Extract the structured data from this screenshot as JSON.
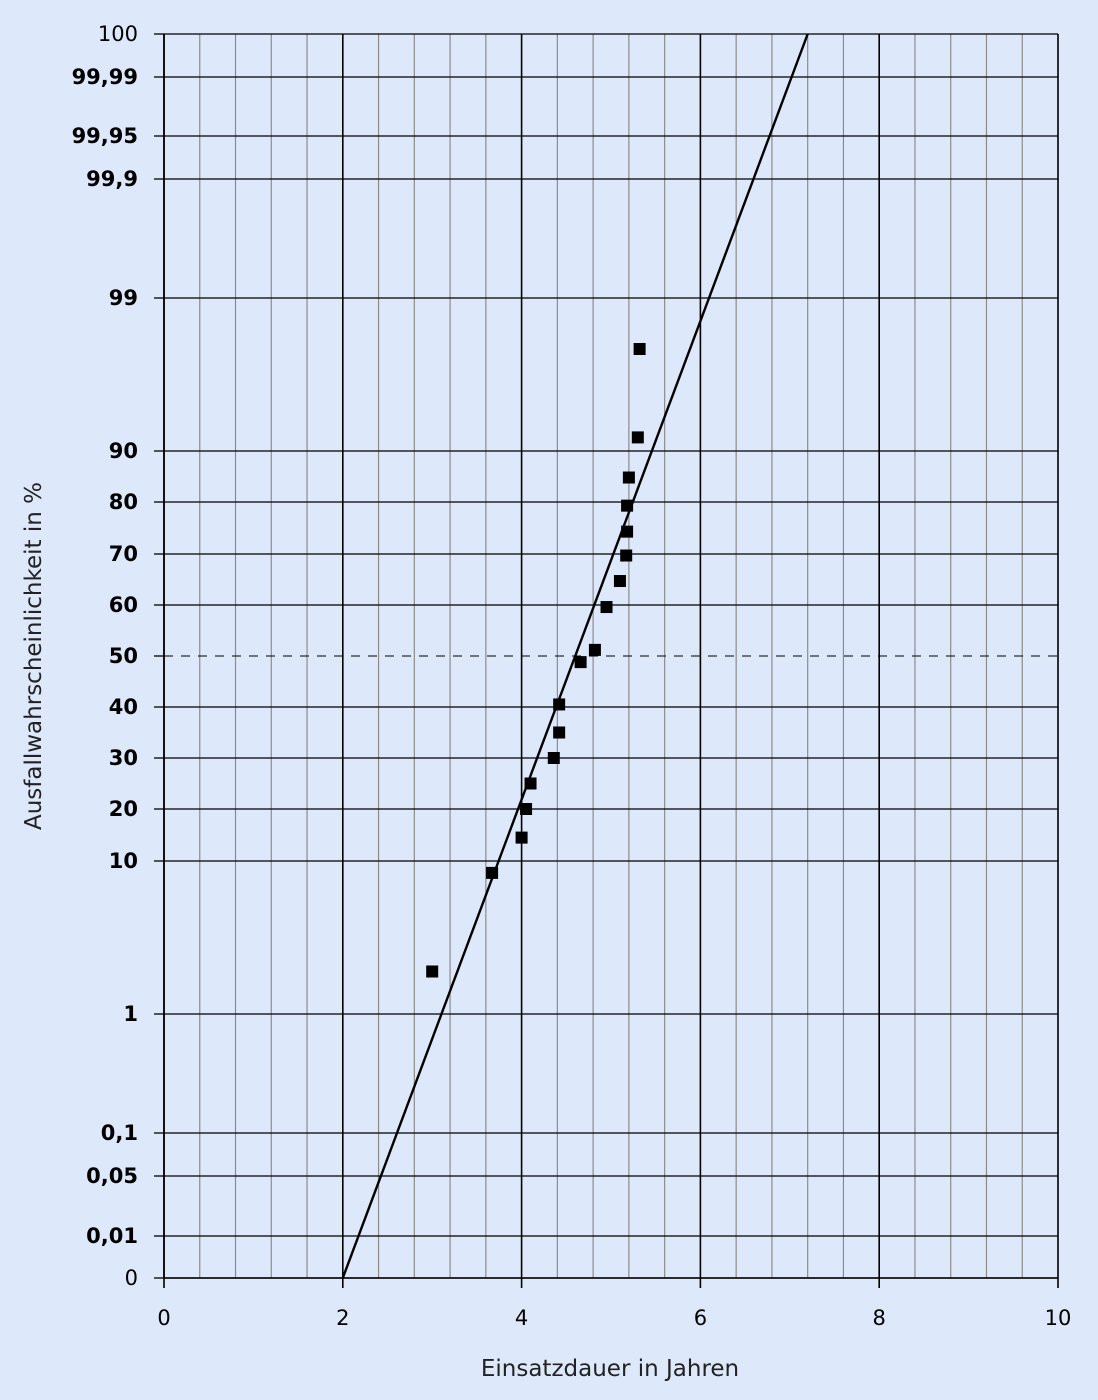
{
  "chart_data": {
    "type": "scatter",
    "title": "",
    "xlabel": "Einsatzdauer in Jahren",
    "ylabel": "Ausfallwahrscheinlichkeit in %",
    "xlim": [
      0,
      10
    ],
    "x_ticks": [
      "0",
      "2",
      "4",
      "6",
      "8",
      "10"
    ],
    "y_ticks": [
      {
        "label": "0",
        "value": 0,
        "bold": false
      },
      {
        "label": "0,01",
        "value": 0.01,
        "bold": true
      },
      {
        "label": "0,05",
        "value": 0.05,
        "bold": true
      },
      {
        "label": "0,1",
        "value": 0.1,
        "bold": true
      },
      {
        "label": "1",
        "value": 1,
        "bold": true
      },
      {
        "label": "10",
        "value": 10,
        "bold": true
      },
      {
        "label": "20",
        "value": 20,
        "bold": true
      },
      {
        "label": "30",
        "value": 30,
        "bold": true
      },
      {
        "label": "40",
        "value": 40,
        "bold": true
      },
      {
        "label": "50",
        "value": 50,
        "bold": true
      },
      {
        "label": "60",
        "value": 60,
        "bold": true
      },
      {
        "label": "70",
        "value": 70,
        "bold": true
      },
      {
        "label": "80",
        "value": 80,
        "bold": true
      },
      {
        "label": "90",
        "value": 90,
        "bold": true
      },
      {
        "label": "99",
        "value": 99,
        "bold": true
      },
      {
        "label": "99,9",
        "value": 99.9,
        "bold": true
      },
      {
        "label": "99,95",
        "value": 99.95,
        "bold": true
      },
      {
        "label": "99,99",
        "value": 99.99,
        "bold": true
      },
      {
        "label": "100",
        "value": 100,
        "bold": false
      }
    ],
    "y_scale": "probability (Weibull)",
    "grid": true,
    "reference_line": {
      "y": 50,
      "style": "dashed"
    },
    "series": [
      {
        "points": [
          {
            "x": 3.0,
            "y": 3.5
          },
          {
            "x": 3.67,
            "y": 9.3
          },
          {
            "x": 4.0,
            "y": 14.5
          },
          {
            "x": 4.05,
            "y": 20
          },
          {
            "x": 4.1,
            "y": 25
          },
          {
            "x": 4.36,
            "y": 30
          },
          {
            "x": 4.42,
            "y": 35
          },
          {
            "x": 4.42,
            "y": 40.5
          },
          {
            "x": 4.66,
            "y": 48.8
          },
          {
            "x": 4.82,
            "y": 51.2
          },
          {
            "x": 4.95,
            "y": 59.6
          },
          {
            "x": 5.1,
            "y": 64.7
          },
          {
            "x": 5.17,
            "y": 69.7
          },
          {
            "x": 5.18,
            "y": 74.3
          },
          {
            "x": 5.18,
            "y": 79.3
          },
          {
            "x": 5.2,
            "y": 84.8
          },
          {
            "x": 5.3,
            "y": 90.8
          },
          {
            "x": 5.32,
            "y": 96
          }
        ]
      }
    ],
    "fit_line": {
      "points": [
        {
          "x": 2.0,
          "y": 0
        },
        {
          "x": 7.2,
          "y": 100
        }
      ]
    }
  }
}
